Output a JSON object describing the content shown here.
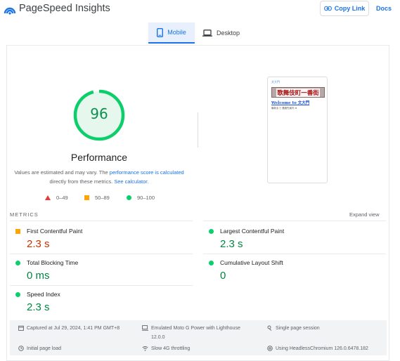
{
  "header": {
    "brand": "PageSpeed Insights",
    "copy_link": "Copy Link",
    "docs": "Docs",
    "accent": "#1a73e8"
  },
  "tabs": [
    {
      "label": "Mobile",
      "icon": "smartphone-icon",
      "selected": true
    },
    {
      "label": "Desktop",
      "icon": "laptop-icon",
      "selected": false
    }
  ],
  "summary": {
    "score": "96",
    "score_fraction": 0.96,
    "score_color": "#0cce6b",
    "category": "Performance",
    "note_prefix": "Values are estimated and may vary. The ",
    "note_link": "performance score is calculated",
    "note_middle": " directly from these metrics. ",
    "note_link2": "See calculator.",
    "legend": [
      {
        "shape": "triangle",
        "label": "0–49",
        "color": "#e53935"
      },
      {
        "shape": "square",
        "label": "50–89",
        "color": "#ffa400"
      },
      {
        "shape": "circle",
        "label": "90–100",
        "color": "#0cce6b"
      }
    ]
  },
  "screenshot": {
    "top_text": "文大門",
    "banner": "歌舞伎町一番街",
    "welcome": "Welcome to 文大門",
    "line": "最新まで 連絡先案内 ★"
  },
  "metrics": {
    "heading": "METRICS",
    "expand": "Expand view",
    "items": [
      {
        "name": "First Contentful Paint",
        "value": "2.3 s",
        "status": "average",
        "color": "#c33300"
      },
      {
        "name": "Largest Contentful Paint",
        "value": "2.3 s",
        "status": "good",
        "color": "#018642"
      },
      {
        "name": "Total Blocking Time",
        "value": "0 ms",
        "status": "good",
        "color": "#018642"
      },
      {
        "name": "Cumulative Layout Shift",
        "value": "0",
        "status": "good",
        "color": "#018642"
      },
      {
        "name": "Speed Index",
        "value": "2.3 s",
        "status": "good",
        "color": "#018642"
      }
    ]
  },
  "footer": {
    "captured": "Captured at Jul 29, 2024, 1:41 PM GMT+8",
    "device": "Emulated Moto G Power with Lighthouse",
    "device_version": "12.0.0",
    "session": "Single page session",
    "load": "Initial page load",
    "throttling": "Slow 4G throttling",
    "browser": "Using HeadlessChromium 126.0.6478.182"
  }
}
